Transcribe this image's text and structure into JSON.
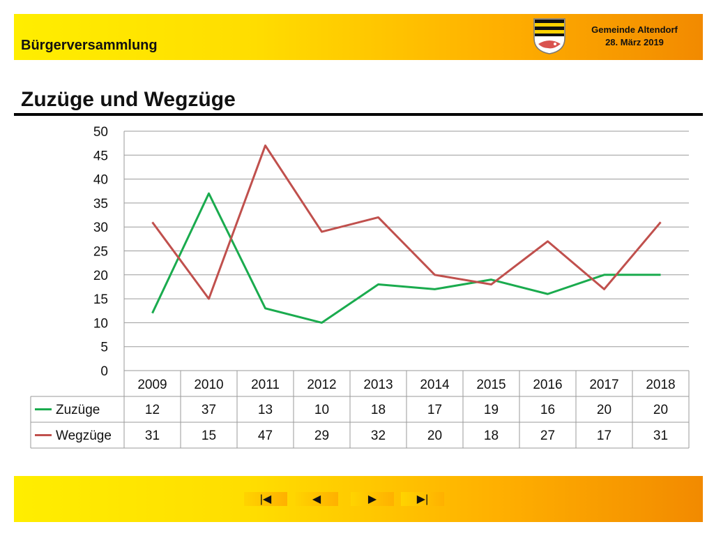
{
  "header": {
    "title": "Bürgerversammlung",
    "municipality": "Gemeinde Altendorf",
    "date": "28. März 2019"
  },
  "page": {
    "title": "Zuzüge und Wegzüge"
  },
  "navigation": {
    "first_icon": "first-page-icon",
    "prev_icon": "previous-page-icon",
    "next_icon": "next-page-icon",
    "last_icon": "last-page-icon"
  },
  "colors": {
    "accent_yellow": "#ffee00",
    "accent_orange": "#f28a00",
    "zuzuege": "#1aab4e",
    "wegzuege": "#c0504d"
  },
  "chart_data": {
    "type": "line",
    "categories": [
      "2009",
      "2010",
      "2011",
      "2012",
      "2013",
      "2014",
      "2015",
      "2016",
      "2017",
      "2018"
    ],
    "series": [
      {
        "name": "Zuzüge",
        "values": [
          12,
          37,
          13,
          10,
          18,
          17,
          19,
          16,
          20,
          20
        ],
        "color": "#1aab4e"
      },
      {
        "name": "Wegzüge",
        "values": [
          31,
          15,
          47,
          29,
          32,
          20,
          18,
          27,
          17,
          31
        ],
        "color": "#c0504d"
      }
    ],
    "ylim": [
      0,
      50
    ],
    "yticks": [
      "0",
      "5",
      "10",
      "15",
      "20",
      "25",
      "30",
      "35",
      "40",
      "45",
      "50"
    ],
    "grid": true,
    "legend": "data-table"
  }
}
